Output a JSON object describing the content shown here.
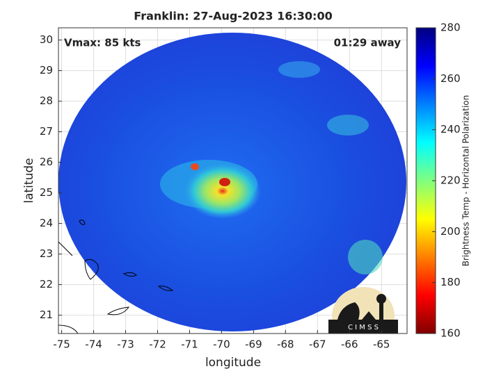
{
  "chart_data": {
    "type": "map",
    "title": "Franklin: 27-Aug-2023 16:30:00",
    "xlabel": "longitude",
    "ylabel": "latitude",
    "xlim": [
      -75.1,
      -64.2
    ],
    "ylim": [
      20.4,
      30.4
    ],
    "xticks": [
      -75,
      -74,
      -73,
      -72,
      -71,
      -70,
      -69,
      -68,
      -67,
      -66,
      -65
    ],
    "yticks": [
      21,
      22,
      23,
      24,
      25,
      26,
      27,
      28,
      29,
      30
    ],
    "grid": true,
    "annotations": [
      "Vmax: 85 kts",
      "01:29 away"
    ],
    "logo_text": "C I M S S",
    "colorbar": {
      "label": "Brightness Temp - Horizontal Polarization",
      "lim": [
        160,
        280
      ],
      "ticks": [
        160,
        180,
        200,
        220,
        240,
        260,
        280
      ],
      "colormap": "jet"
    }
  }
}
